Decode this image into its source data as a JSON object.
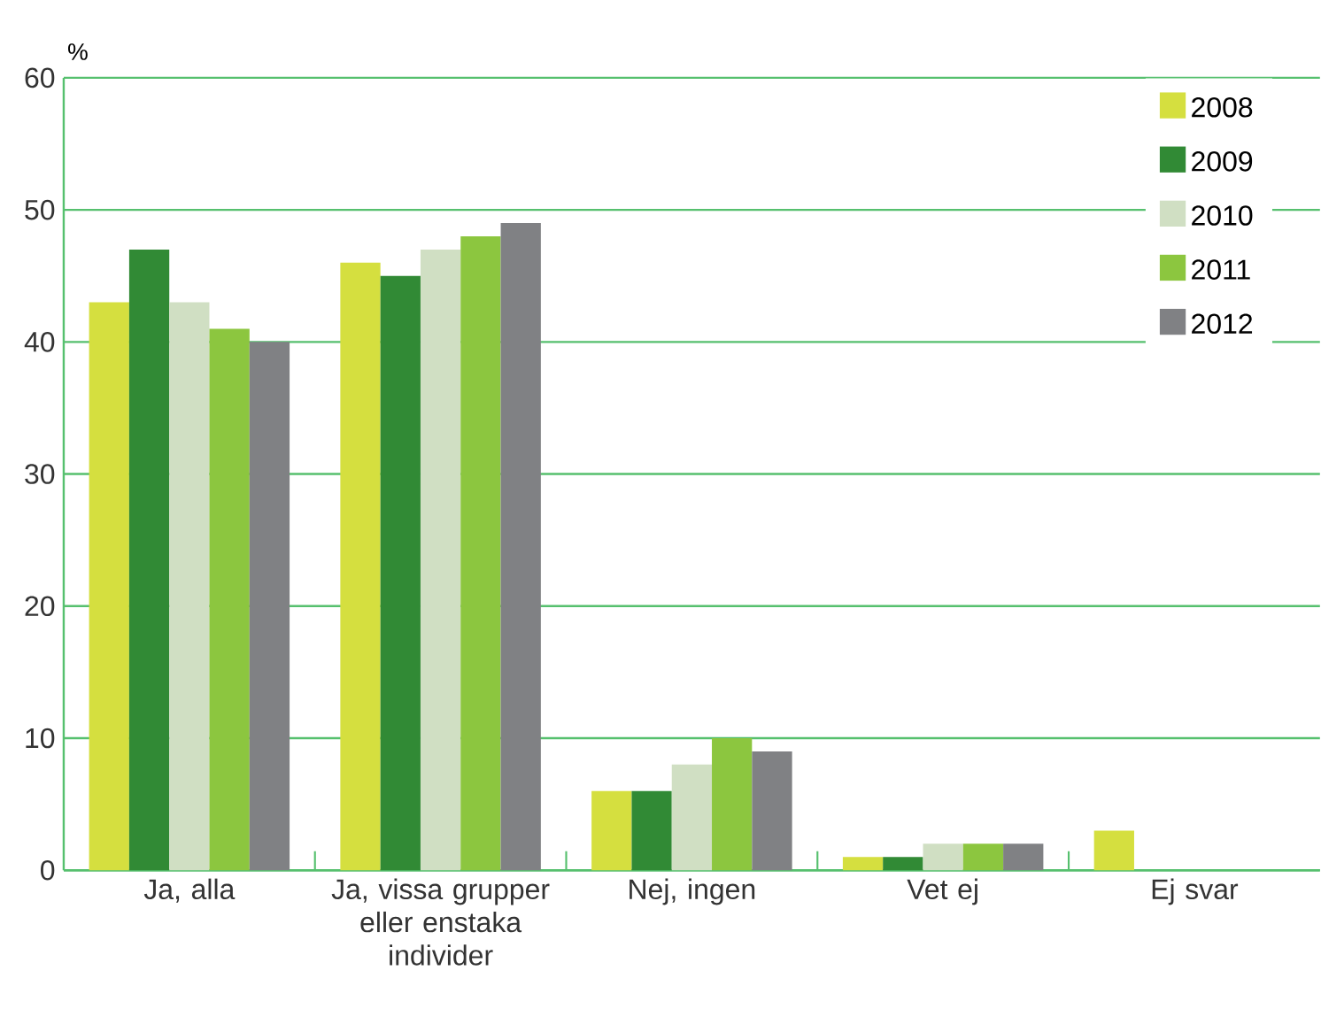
{
  "chart_data": {
    "type": "bar",
    "ylabel": "%",
    "categories": [
      "Ja, alla",
      "Ja, vissa grupper eller enstaka individer",
      "Nej, ingen",
      "Vet ej",
      "Ej svar"
    ],
    "series": [
      {
        "name": "2008",
        "color": "#d5df3f",
        "values": [
          43,
          46,
          6,
          1,
          3
        ]
      },
      {
        "name": "2009",
        "color": "#318a35",
        "values": [
          47,
          45,
          6,
          1,
          null
        ]
      },
      {
        "name": "2010",
        "color": "#d0dfc3",
        "values": [
          43,
          47,
          8,
          2,
          null
        ]
      },
      {
        "name": "2011",
        "color": "#8cc63f",
        "values": [
          41,
          48,
          10,
          2,
          null
        ]
      },
      {
        "name": "2012",
        "color": "#808184",
        "values": [
          40,
          49,
          9,
          2,
          null
        ]
      }
    ],
    "ylim": [
      0,
      60
    ],
    "yticks": [
      0,
      10,
      20,
      30,
      40,
      50,
      60
    ],
    "grid": "y",
    "legend": "top right"
  }
}
